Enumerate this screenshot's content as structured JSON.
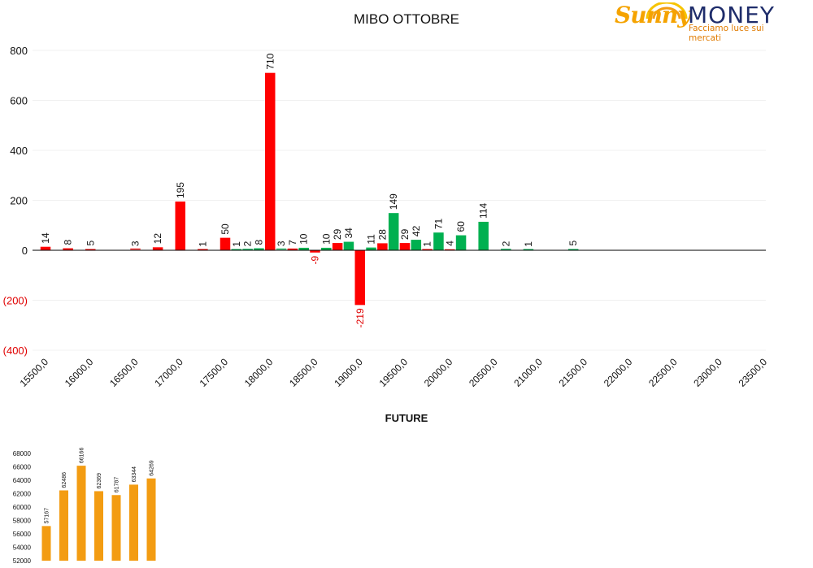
{
  "logo": {
    "brand_first": "Sunny",
    "brand_second": "MONEY",
    "tagline": "Facciamo luce sui mercati"
  },
  "chart_data": [
    {
      "type": "bar",
      "title": "MIBO OTTOBRE",
      "ylim": [
        -400,
        800
      ],
      "yticks": [
        800,
        600,
        400,
        200,
        0,
        -200,
        -400
      ],
      "ytick_labels": [
        "800",
        "600",
        "400",
        "200",
        "0",
        "(200)",
        "(400)"
      ],
      "xticks": [
        15500,
        16000,
        16500,
        17000,
        17500,
        18000,
        18500,
        19000,
        19500,
        20000,
        20500,
        21000,
        21500,
        22000,
        22500,
        23000,
        23500
      ],
      "xtick_labels": [
        "15500,0",
        "16000,0",
        "16500,0",
        "17000,0",
        "17500,0",
        "18000,0",
        "18500,0",
        "19000,0",
        "19500,0",
        "20000,0",
        "20500,0",
        "21000,0",
        "21500,0",
        "22000,0",
        "22500,0",
        "23000,0",
        "23500,0"
      ],
      "grid": true,
      "colors": {
        "red": "#ff0000",
        "green": "#00b050",
        "negative_label": "#e00000"
      },
      "series": [
        {
          "color": "red",
          "points": [
            {
              "x": 15500,
              "y": 14
            },
            {
              "x": 15750,
              "y": 8
            },
            {
              "x": 16000,
              "y": 5
            },
            {
              "x": 16500,
              "y": 3
            },
            {
              "x": 16750,
              "y": 12
            },
            {
              "x": 17000,
              "y": 195
            },
            {
              "x": 17250,
              "y": 1
            },
            {
              "x": 17500,
              "y": 50
            },
            {
              "x": 18000,
              "y": 710
            },
            {
              "x": 18250,
              "y": 7
            },
            {
              "x": 18500,
              "y": -9
            },
            {
              "x": 18750,
              "y": 29
            },
            {
              "x": 19000,
              "y": -219
            },
            {
              "x": 19250,
              "y": 28
            },
            {
              "x": 19500,
              "y": 29
            },
            {
              "x": 19750,
              "y": 1
            },
            {
              "x": 20000,
              "y": 4
            }
          ]
        },
        {
          "color": "green",
          "points": [
            {
              "x": 17625,
              "y": 1
            },
            {
              "x": 17750,
              "y": 2
            },
            {
              "x": 17875,
              "y": 8
            },
            {
              "x": 18125,
              "y": 3
            },
            {
              "x": 18375,
              "y": 10
            },
            {
              "x": 18625,
              "y": 10
            },
            {
              "x": 18875,
              "y": 34
            },
            {
              "x": 19125,
              "y": 11
            },
            {
              "x": 19375,
              "y": 149
            },
            {
              "x": 19625,
              "y": 42
            },
            {
              "x": 19875,
              "y": 71
            },
            {
              "x": 20125,
              "y": 60
            },
            {
              "x": 20375,
              "y": 114
            },
            {
              "x": 20625,
              "y": 2
            },
            {
              "x": 20875,
              "y": 1
            },
            {
              "x": 21375,
              "y": 5
            }
          ]
        }
      ]
    },
    {
      "type": "bar",
      "title": "FUTURE",
      "ylim": [
        52000,
        68000
      ],
      "yticks": [
        68000,
        66000,
        64000,
        62000,
        60000,
        58000,
        56000,
        54000,
        52000
      ],
      "ytick_labels": [
        "68000",
        "66000",
        "64000",
        "62000",
        "60000",
        "58000",
        "56000",
        "54000",
        "52000"
      ],
      "color": "#f39c12",
      "values": [
        57167,
        62486,
        66166,
        62369,
        61787,
        63344,
        64269
      ],
      "value_labels": [
        "57167",
        "62486",
        "66166",
        "62369",
        "61787",
        "63344",
        "64269"
      ]
    }
  ]
}
